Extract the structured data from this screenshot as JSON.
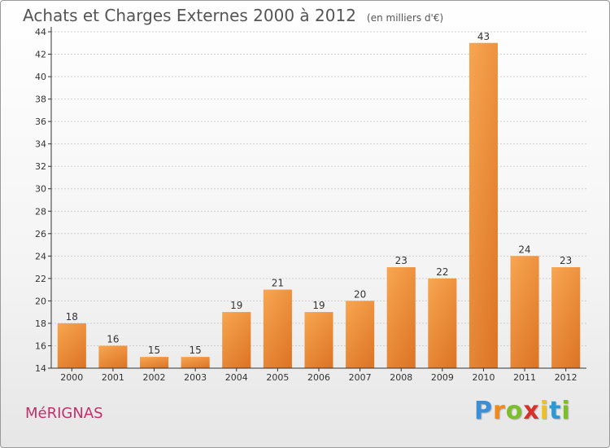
{
  "chart_data": {
    "type": "bar",
    "title": "Achats et Charges Externes 2000 à 2012",
    "subtitle": "(en milliers d'€)",
    "categories": [
      "2000",
      "2001",
      "2002",
      "2003",
      "2004",
      "2005",
      "2006",
      "2007",
      "2008",
      "2009",
      "2010",
      "2011",
      "2012"
    ],
    "values": [
      18,
      16,
      15,
      15,
      19,
      21,
      19,
      20,
      23,
      22,
      43,
      24,
      23
    ],
    "ylim": [
      14,
      44
    ],
    "yticks": [
      14,
      16,
      18,
      20,
      22,
      24,
      26,
      28,
      30,
      32,
      34,
      36,
      38,
      40,
      42,
      44
    ],
    "grid": true,
    "bar_color": "#f0913a"
  },
  "commune": "MéRIGNAS",
  "brand": {
    "letters": [
      "P",
      "r",
      "o",
      "x",
      "i",
      "t",
      "i"
    ],
    "colors": [
      "#3a8fd6",
      "#f08a1c",
      "#7cbf2a",
      "#d8302a",
      "#f0c020",
      "#2a9ad6",
      "#7cbf2a"
    ]
  }
}
